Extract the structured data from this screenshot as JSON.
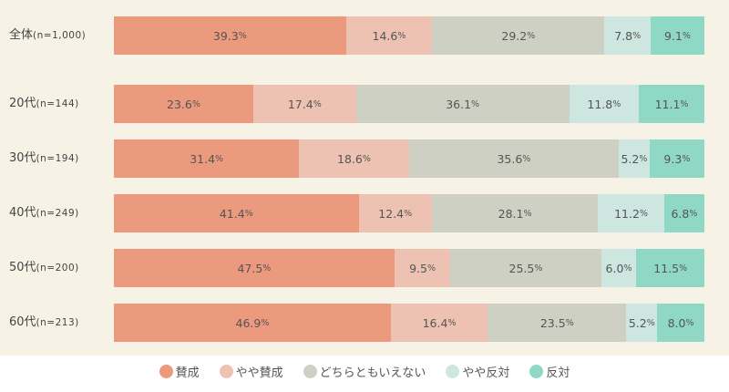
{
  "chart_data": {
    "type": "bar",
    "orientation": "horizontal-stacked-100",
    "categories": [
      {
        "label": "全体",
        "n": "(n=1,000)"
      },
      {
        "label": "20代",
        "n": "(n=144)"
      },
      {
        "label": "30代",
        "n": "(n=194)"
      },
      {
        "label": "40代",
        "n": "(n=249)"
      },
      {
        "label": "50代",
        "n": "(n=200)"
      },
      {
        "label": "60代",
        "n": "(n=213)"
      }
    ],
    "series": [
      {
        "name": "賛成",
        "color": "#eb9a7d",
        "values": [
          39.3,
          23.6,
          31.4,
          41.4,
          47.5,
          46.9
        ]
      },
      {
        "name": "やや賛成",
        "color": "#eec2b3",
        "values": [
          14.6,
          17.4,
          18.6,
          12.4,
          9.5,
          16.4
        ]
      },
      {
        "name": "どちらともいえない",
        "color": "#cfd0c4",
        "values": [
          29.2,
          36.1,
          35.6,
          28.1,
          25.5,
          23.5
        ]
      },
      {
        "name": "やや反対",
        "color": "#cde6df",
        "values": [
          7.8,
          11.8,
          5.2,
          11.2,
          6.0,
          5.2
        ]
      },
      {
        "name": "反対",
        "color": "#8fd8c5",
        "values": [
          9.1,
          11.1,
          9.3,
          6.8,
          11.5,
          8.0
        ]
      }
    ],
    "unit": "%",
    "xlim": [
      0,
      100
    ],
    "legend": "bottom"
  }
}
